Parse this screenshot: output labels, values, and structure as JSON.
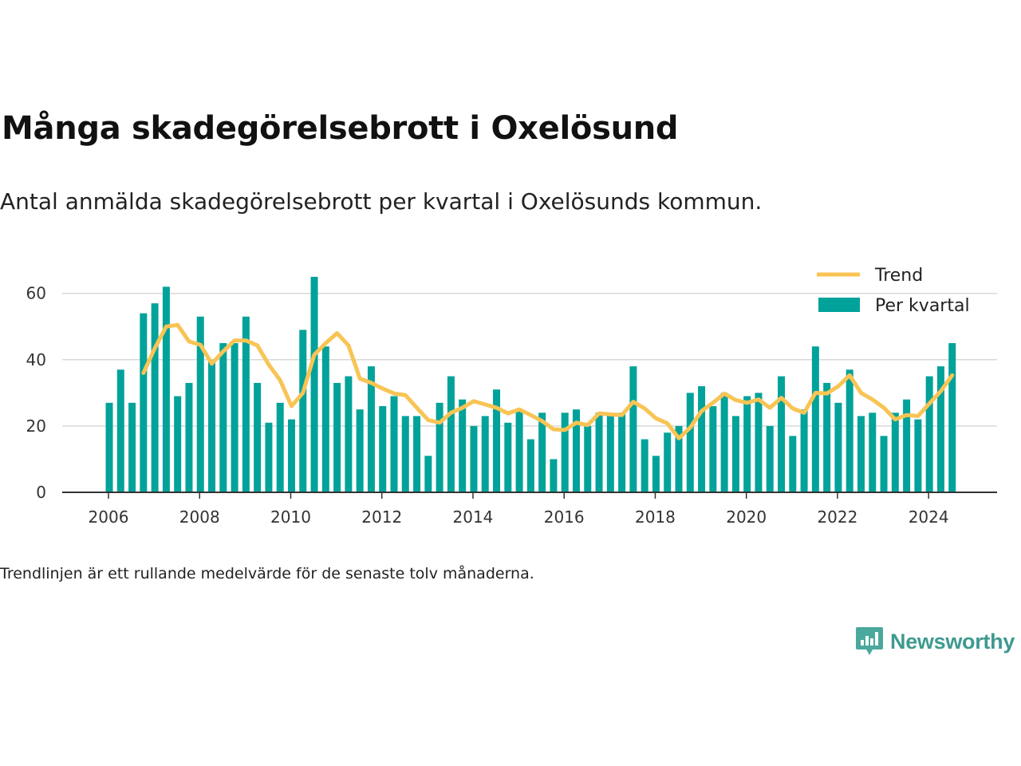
{
  "title": "Många skadegörelsebrott i Oxelösund",
  "subtitle": "Antal anmälda skadegörelsebrott per kvartal i Oxelösunds kommun.",
  "note": "Trendlinjen är ett rullande medelvärde för de senaste tolv månaderna.",
  "brand": {
    "name": "Newsworthy",
    "icon": "newsworthy-logo-icon",
    "color": "#3e9a8f"
  },
  "colors": {
    "bars": "#00a29a",
    "trend": "#f8c454",
    "grid": "#d9d9d9",
    "axis": "#333333"
  },
  "chart_data": {
    "type": "bar",
    "x_start": "2006 Q1",
    "x_ticks": [
      "2006",
      "2008",
      "2010",
      "2012",
      "2014",
      "2016",
      "2018",
      "2020",
      "2022",
      "2024"
    ],
    "y_ticks": [
      "0",
      "20",
      "40",
      "60"
    ],
    "ylim": [
      0,
      70
    ],
    "grid": true,
    "legend_position": "top-right",
    "series": [
      {
        "name": "Per kvartal",
        "type": "bar",
        "values": [
          27,
          37,
          27,
          54,
          57,
          62,
          29,
          33,
          53,
          40,
          45,
          45,
          53,
          33,
          21,
          27,
          22,
          49,
          65,
          44,
          33,
          35,
          25,
          38,
          26,
          29,
          23,
          23,
          11,
          27,
          35,
          28,
          20,
          23,
          31,
          21,
          25,
          16,
          24,
          10,
          24,
          25,
          20,
          24,
          23,
          24,
          38,
          16,
          11,
          18,
          20,
          30,
          32,
          26,
          30,
          23,
          29,
          30,
          20,
          35,
          17,
          25,
          44,
          33,
          27,
          37,
          23,
          24,
          17,
          24,
          28,
          22,
          35,
          38,
          45
        ]
      },
      {
        "name": "Trend",
        "type": "line",
        "start_index": 3,
        "values": [
          36,
          43.5,
          50,
          50.5,
          45.5,
          44.5,
          38.8,
          42.5,
          45.8,
          45.8,
          44.3,
          38.5,
          33.8,
          26,
          30,
          41.5,
          45,
          48,
          44.3,
          34.3,
          33,
          31.3,
          29.8,
          29.3,
          25.5,
          21.8,
          21,
          24,
          25.5,
          27.5,
          26.5,
          25.5,
          23.8,
          25,
          23.3,
          21.5,
          19,
          18.8,
          21,
          20.3,
          23.8,
          23.5,
          23.3,
          27.3,
          25.3,
          22.3,
          20.8,
          16.3,
          19.5,
          24.5,
          27,
          29.8,
          27.8,
          27,
          28,
          25.5,
          28.5,
          25.3,
          24,
          30,
          29.8,
          32,
          35.3,
          30,
          28,
          25.5,
          22,
          23.3,
          23,
          26.8,
          30.5,
          35.3
        ]
      }
    ]
  }
}
